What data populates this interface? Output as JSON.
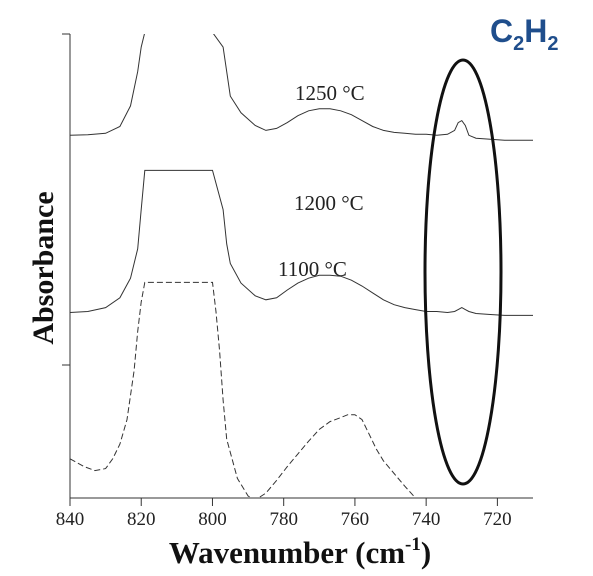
{
  "chart_data": {
    "type": "line",
    "title": "",
    "xlabel": "Wavenumber (cm",
    "xlabel_superscript": "-1",
    "xlabel_close": ")",
    "ylabel": "Absorbance",
    "xlim": [
      840,
      710
    ],
    "x_reversed": true,
    "y_ticklabels_shown": false,
    "xticks": [
      840,
      820,
      800,
      780,
      760,
      740,
      720
    ],
    "xtick_labels": [
      "840",
      "820",
      "800",
      "780",
      "760",
      "740",
      "720"
    ],
    "grid": false,
    "legend": "none",
    "annotations": {
      "molecule_main": "C",
      "molecule_sub1": "2",
      "molecule_mid": "H",
      "molecule_sub2": "2",
      "highlight": "ellipse around the 730 cm-1 peak"
    },
    "series": [
      {
        "name": "1250 °C",
        "style": "solid",
        "x": [
          840,
          835,
          830,
          826,
          823,
          821,
          820,
          819,
          800,
          797,
          796,
          795,
          792,
          788,
          785,
          782,
          779,
          776,
          773,
          770,
          767,
          764,
          761,
          758,
          755,
          752,
          749,
          746,
          743,
          740,
          737,
          734,
          732,
          731,
          730,
          729,
          728,
          726,
          722,
          718,
          714,
          710
        ],
        "y": [
          0.15,
          0.155,
          0.17,
          0.24,
          0.45,
          0.8,
          1.05,
          1.2,
          1.2,
          1.05,
          0.8,
          0.55,
          0.38,
          0.25,
          0.2,
          0.22,
          0.28,
          0.35,
          0.4,
          0.42,
          0.42,
          0.4,
          0.36,
          0.3,
          0.24,
          0.2,
          0.18,
          0.17,
          0.16,
          0.16,
          0.15,
          0.16,
          0.2,
          0.28,
          0.3,
          0.25,
          0.15,
          0.12,
          0.11,
          0.1,
          0.1,
          0.1
        ]
      },
      {
        "name": "1200 °C",
        "style": "solid",
        "x": [
          840,
          835,
          830,
          826,
          823,
          821,
          820,
          819,
          800,
          797,
          796,
          795,
          792,
          788,
          785,
          782,
          779,
          776,
          773,
          770,
          767,
          764,
          761,
          758,
          755,
          752,
          749,
          746,
          743,
          740,
          737,
          734,
          732,
          731,
          730,
          729,
          728,
          726,
          722,
          718,
          714,
          710
        ],
        "y": [
          -0.25,
          -0.24,
          -0.2,
          -0.1,
          0.1,
          0.4,
          0.8,
          1.2,
          1.2,
          0.8,
          0.45,
          0.25,
          0.05,
          -0.08,
          -0.12,
          -0.1,
          -0.02,
          0.05,
          0.1,
          0.13,
          0.13,
          0.12,
          0.08,
          0.02,
          -0.05,
          -0.12,
          -0.17,
          -0.2,
          -0.22,
          -0.24,
          -0.24,
          -0.25,
          -0.24,
          -0.22,
          -0.2,
          -0.22,
          -0.24,
          -0.26,
          -0.27,
          -0.28,
          -0.28,
          -0.28
        ]
      },
      {
        "name": "1100 °C",
        "style": "dashed",
        "x": [
          840,
          836,
          833,
          830,
          828,
          826,
          824,
          822,
          821,
          820,
          819,
          800,
          799,
          798,
          797,
          796,
          793,
          790,
          788,
          785,
          782,
          779,
          776,
          773,
          770,
          767,
          764,
          762,
          760,
          758,
          756,
          754,
          752,
          749,
          746,
          743,
          740,
          737,
          734,
          731,
          728,
          725,
          722,
          718,
          714,
          710
        ],
        "y": [
          -0.6,
          -0.68,
          -0.72,
          -0.7,
          -0.6,
          -0.45,
          -0.2,
          0.3,
          0.7,
          1.0,
          1.2,
          1.2,
          0.9,
          0.5,
          0.0,
          -0.4,
          -0.8,
          -0.98,
          -1.02,
          -0.95,
          -0.82,
          -0.68,
          -0.55,
          -0.42,
          -0.3,
          -0.22,
          -0.18,
          -0.15,
          -0.15,
          -0.2,
          -0.35,
          -0.5,
          -0.62,
          -0.75,
          -0.88,
          -1.0,
          -1.15,
          -1.26,
          -1.33,
          -1.38,
          -1.42,
          -1.44,
          -1.46,
          -1.47,
          -1.48,
          -1.49
        ]
      }
    ]
  }
}
